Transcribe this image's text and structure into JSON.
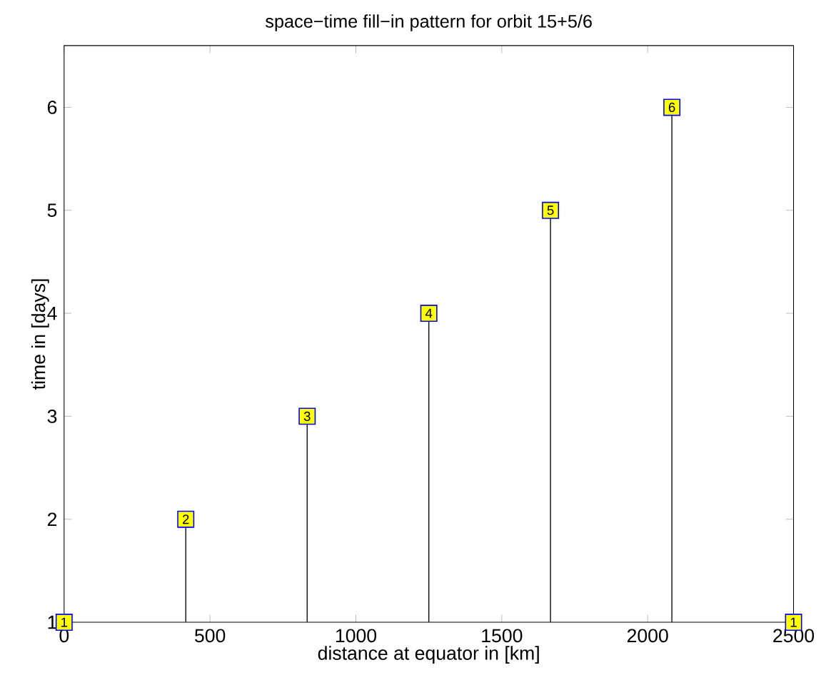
{
  "chart_data": {
    "type": "lollipop",
    "title": "space−time fill−in pattern for orbit 15+5/6",
    "xlabel": "distance at equator in [km]",
    "ylabel": "time in [days]",
    "x": [
      0,
      417,
      833,
      1250,
      1667,
      2083,
      2500
    ],
    "values": [
      1,
      2,
      3,
      4,
      5,
      6,
      1
    ],
    "value_labels": [
      "1",
      "2",
      "3",
      "4",
      "5",
      "6",
      "1"
    ],
    "color": "#ffff00",
    "marker": "square",
    "xlim": [
      0,
      2500
    ],
    "ylim": [
      1,
      6.6
    ],
    "xticks": [
      0,
      500,
      1000,
      1500,
      2000,
      2500
    ],
    "yticks": [
      1,
      2,
      3,
      4,
      5,
      6
    ]
  }
}
